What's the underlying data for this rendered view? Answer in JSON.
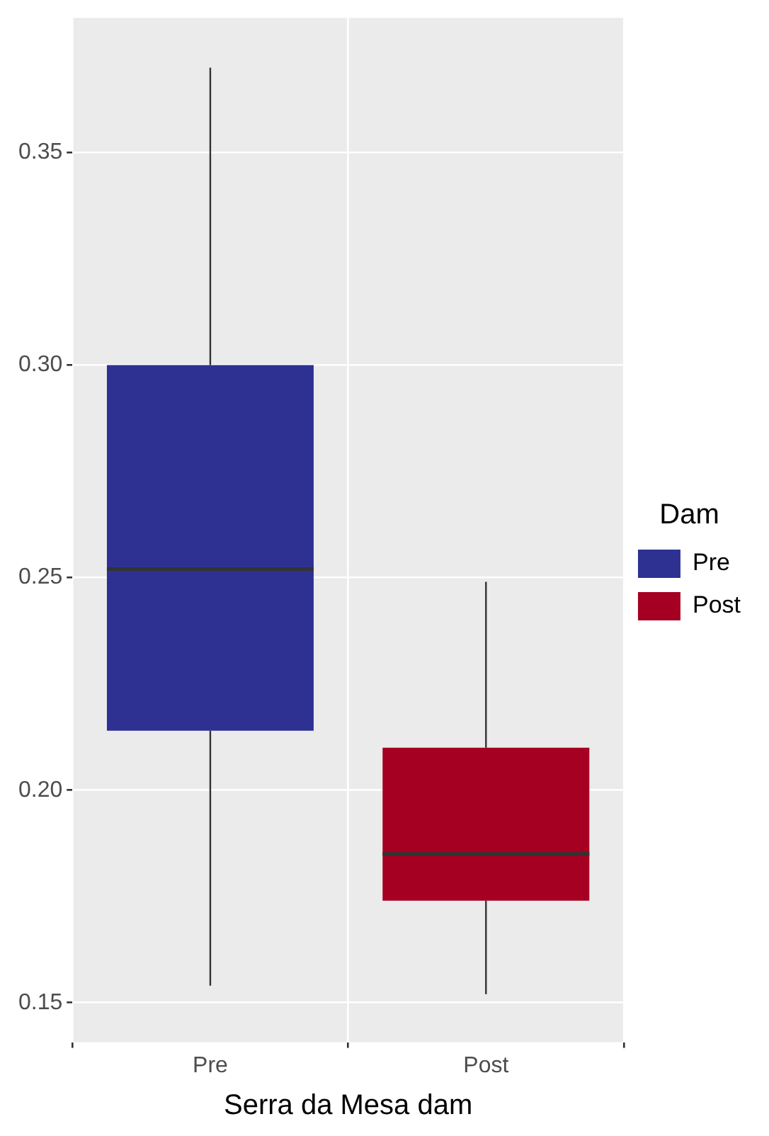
{
  "chart_data": {
    "type": "box",
    "xlabel": "Serra da Mesa dam",
    "legend_title": "Dam",
    "categories": [
      "Pre",
      "Post"
    ],
    "series": [
      {
        "name": "Pre",
        "color": "#2e3192",
        "boxes": [
          {
            "low": 0.154,
            "q1": 0.214,
            "median": 0.252,
            "q3": 0.3,
            "high": 0.37
          },
          null
        ]
      },
      {
        "name": "Post",
        "color": "#a50021",
        "boxes": [
          null,
          {
            "low": 0.152,
            "q1": 0.174,
            "median": 0.185,
            "q3": 0.21,
            "high": 0.249
          }
        ]
      }
    ],
    "ylim": [
      0.1407,
      0.3817
    ],
    "yticks": [
      {
        "value": 0.15,
        "label": "0.15"
      },
      {
        "value": 0.2,
        "label": "0.20"
      },
      {
        "value": 0.25,
        "label": "0.25"
      },
      {
        "value": 0.3,
        "label": "0.30"
      },
      {
        "value": 0.35,
        "label": "0.35"
      }
    ],
    "grid": true,
    "legend": "right"
  }
}
